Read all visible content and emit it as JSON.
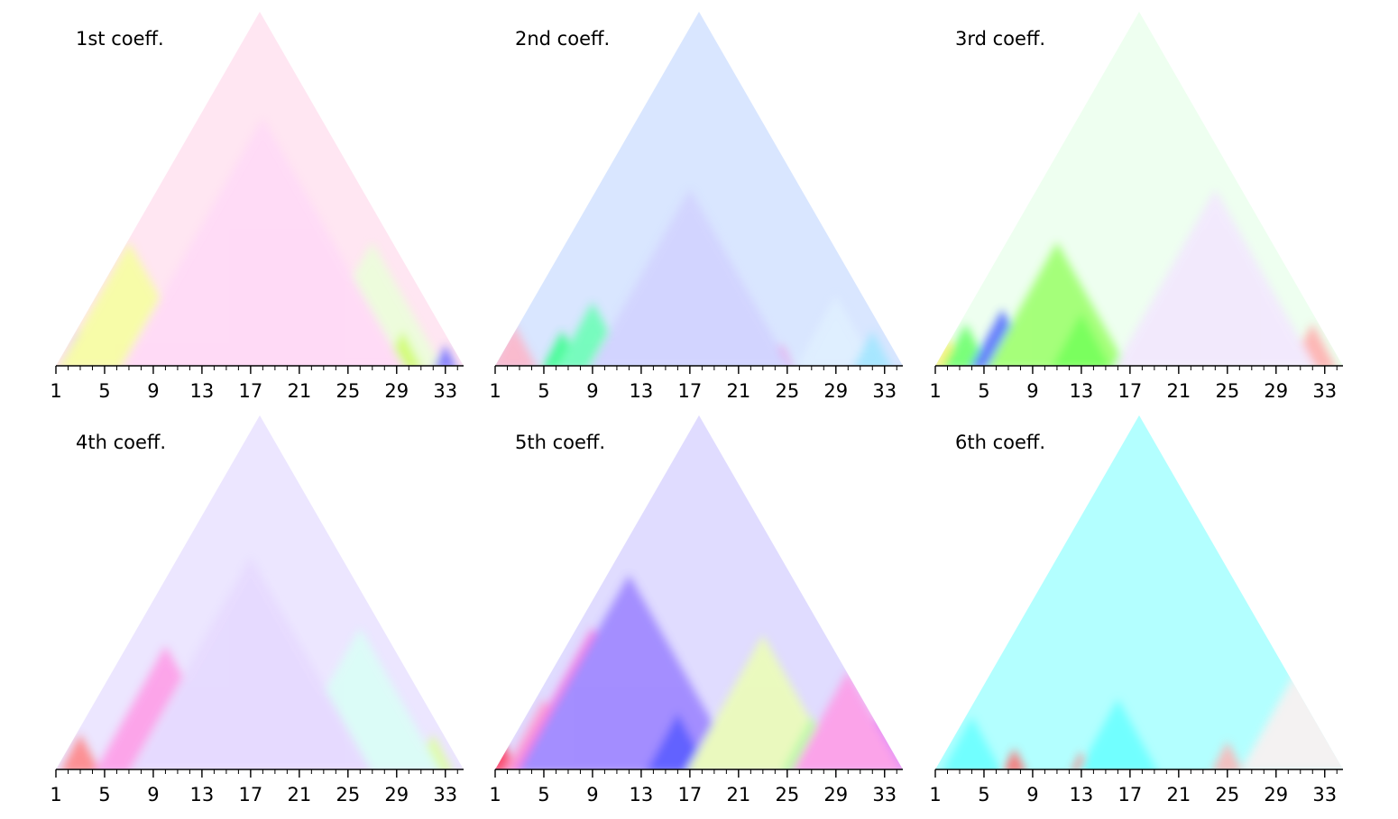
{
  "chart_data": [
    {
      "type": "heatmap",
      "title": "1st coeff.",
      "x_ticks": [
        1,
        5,
        9,
        13,
        17,
        21,
        25,
        29,
        33
      ],
      "xlim": [
        1,
        34.5
      ],
      "base_color": "#ffe6f2",
      "blobs": [
        {
          "x": 2.8,
          "level": 0.1,
          "color": "#7f7fff"
        },
        {
          "x": 6.5,
          "level": 0.12,
          "color": "#b6ff2a"
        },
        {
          "x": 8.5,
          "level": 0.08,
          "color": "#ccff00"
        },
        {
          "x": 10.5,
          "level": 0.05,
          "color": "#9999ff"
        },
        {
          "x": 7,
          "level": 0.35,
          "color": "#f6ff9c"
        },
        {
          "x": 12,
          "level": 0.25,
          "color": "#ffb3f0"
        },
        {
          "x": 17,
          "level": 0.12,
          "color": "#e570ff"
        },
        {
          "x": 19,
          "level": 0.2,
          "color": "#ff99ff"
        },
        {
          "x": 22,
          "level": 0.05,
          "color": "#ff4da6"
        },
        {
          "x": 25.5,
          "level": 0.05,
          "color": "#ff3380"
        },
        {
          "x": 27,
          "level": 0.35,
          "color": "#eaffd9"
        },
        {
          "x": 29.5,
          "level": 0.1,
          "color": "#ccff66"
        },
        {
          "x": 33,
          "level": 0.06,
          "color": "#6e6eff"
        },
        {
          "x": 18,
          "level": 0.7,
          "color": "#ffd9f7"
        }
      ]
    },
    {
      "type": "heatmap",
      "title": "2nd coeff.",
      "x_ticks": [
        1,
        5,
        9,
        13,
        17,
        21,
        25,
        29,
        33
      ],
      "xlim": [
        1,
        34.5
      ],
      "base_color": "#d9e6ff",
      "blobs": [
        {
          "x": 2.5,
          "level": 0.12,
          "color": "#ffb3c6"
        },
        {
          "x": 6.5,
          "level": 0.1,
          "color": "#33ff88"
        },
        {
          "x": 9,
          "level": 0.18,
          "color": "#66ffb3"
        },
        {
          "x": 14,
          "level": 0.15,
          "color": "#a6b3ff"
        },
        {
          "x": 17.5,
          "level": 0.25,
          "color": "#b8a6ff"
        },
        {
          "x": 19,
          "level": 0.05,
          "color": "#ff66cc"
        },
        {
          "x": 24.5,
          "level": 0.06,
          "color": "#ff33cc"
        },
        {
          "x": 29,
          "level": 0.2,
          "color": "#e0f0ff"
        },
        {
          "x": 32,
          "level": 0.1,
          "color": "#9ee6ff"
        },
        {
          "x": 17,
          "level": 0.5,
          "color": "#d1d1ff"
        }
      ]
    },
    {
      "type": "heatmap",
      "title": "3rd coeff.",
      "x_ticks": [
        1,
        5,
        9,
        13,
        17,
        21,
        25,
        29,
        33
      ],
      "xlim": [
        1,
        34.5
      ],
      "base_color": "#eefff0",
      "blobs": [
        {
          "x": 2,
          "level": 0.08,
          "color": "#ffee66"
        },
        {
          "x": 3.5,
          "level": 0.12,
          "color": "#66ff66"
        },
        {
          "x": 6.5,
          "level": 0.16,
          "color": "#4d66ff"
        },
        {
          "x": 9,
          "level": 0.12,
          "color": "#6680ff"
        },
        {
          "x": 11,
          "level": 0.35,
          "color": "#99ff66"
        },
        {
          "x": 13,
          "level": 0.15,
          "color": "#66ff44"
        },
        {
          "x": 18,
          "level": 0.1,
          "color": "#b3ff99"
        },
        {
          "x": 22,
          "level": 0.28,
          "color": "#ffb3ff"
        },
        {
          "x": 25.5,
          "level": 0.05,
          "color": "#8033ff"
        },
        {
          "x": 27,
          "level": 0.25,
          "color": "#ffccf2"
        },
        {
          "x": 32,
          "level": 0.12,
          "color": "#ffaaaa"
        },
        {
          "x": 24,
          "level": 0.5,
          "color": "#f3e6ff"
        }
      ]
    },
    {
      "type": "heatmap",
      "title": "4th coeff.",
      "x_ticks": [
        1,
        5,
        9,
        13,
        17,
        21,
        25,
        29,
        33
      ],
      "xlim": [
        1,
        34.5
      ],
      "base_color": "#ece6ff",
      "blobs": [
        {
          "x": 3,
          "level": 0.1,
          "color": "#ff8080"
        },
        {
          "x": 7.5,
          "level": 0.12,
          "color": "#e066ff"
        },
        {
          "x": 10,
          "level": 0.35,
          "color": "#ff99e6"
        },
        {
          "x": 14,
          "level": 0.18,
          "color": "#ff80d9"
        },
        {
          "x": 18.5,
          "level": 0.08,
          "color": "#66ff99"
        },
        {
          "x": 21,
          "level": 0.2,
          "color": "#b899ff"
        },
        {
          "x": 24.5,
          "level": 0.12,
          "color": "#66ff80"
        },
        {
          "x": 29,
          "level": 0.12,
          "color": "#ff4d4d"
        },
        {
          "x": 32,
          "level": 0.1,
          "color": "#ddff99"
        },
        {
          "x": 26,
          "level": 0.4,
          "color": "#d9fff6"
        },
        {
          "x": 17,
          "level": 0.6,
          "color": "#e6d9ff"
        }
      ]
    },
    {
      "type": "heatmap",
      "title": "5th coeff.",
      "x_ticks": [
        1,
        5,
        9,
        13,
        17,
        21,
        25,
        29,
        33
      ],
      "xlim": [
        1,
        34.5
      ],
      "base_color": "#e0dcff",
      "blobs": [
        {
          "x": 1.6,
          "level": 0.08,
          "color": "#ff3355"
        },
        {
          "x": 5,
          "level": 0.2,
          "color": "#ff99cc"
        },
        {
          "x": 9,
          "level": 0.4,
          "color": "#ff66d9"
        },
        {
          "x": 12,
          "level": 0.55,
          "color": "#9980ff"
        },
        {
          "x": 16,
          "level": 0.16,
          "color": "#4d4dff"
        },
        {
          "x": 20.5,
          "level": 0.15,
          "color": "#99ff66"
        },
        {
          "x": 23.5,
          "level": 0.12,
          "color": "#ff55c0"
        },
        {
          "x": 23,
          "level": 0.38,
          "color": "#ecffb3"
        },
        {
          "x": 27,
          "level": 0.15,
          "color": "#b3ff99"
        },
        {
          "x": 32.5,
          "level": 0.15,
          "color": "#c640ff"
        },
        {
          "x": 30,
          "level": 0.28,
          "color": "#ff99e6"
        }
      ]
    },
    {
      "type": "heatmap",
      "title": "6th coeff.",
      "x_ticks": [
        1,
        5,
        9,
        13,
        17,
        21,
        25,
        29,
        33
      ],
      "xlim": [
        1,
        34.5
      ],
      "base_color": "#b3ffff",
      "blobs": [
        {
          "x": 4,
          "level": 0.15,
          "color": "#66ffff"
        },
        {
          "x": 7.5,
          "level": 0.06,
          "color": "#ff6666"
        },
        {
          "x": 13,
          "level": 0.05,
          "color": "#ff6666"
        },
        {
          "x": 16,
          "level": 0.2,
          "color": "#66ffff"
        },
        {
          "x": 25,
          "level": 0.08,
          "color": "#ffb3b3"
        },
        {
          "x": 30.5,
          "level": 0.1,
          "color": "#ff5555"
        },
        {
          "x": 33,
          "level": 0.1,
          "color": "#55ffff"
        },
        {
          "x": 31,
          "level": 0.3,
          "color": "#fff0f0"
        }
      ]
    }
  ]
}
